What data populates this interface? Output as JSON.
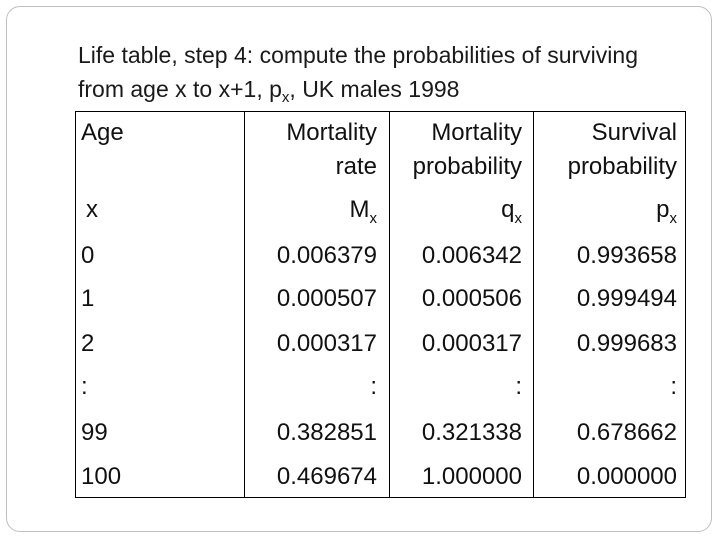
{
  "title": {
    "text": "Life table, step 4: compute the probabilities of surviving from age x to x+1, p",
    "sub": "x",
    "suffix": ", UK males 1998"
  },
  "table": {
    "headers": {
      "age": "Age",
      "mortality_rate": [
        "Mortality",
        "rate"
      ],
      "mortality_probability": [
        "Mortality",
        "probability"
      ],
      "survival_probability": [
        "Survival",
        "probability"
      ]
    },
    "symbols": {
      "age": "x",
      "mortality_rate": {
        "base": "M",
        "sub": "x"
      },
      "mortality_probability": {
        "base": "q",
        "sub": "x"
      },
      "survival_probability": {
        "base": "p",
        "sub": "x"
      }
    },
    "rows": [
      {
        "age": "0",
        "mx": "0.006379",
        "qx": "0.006342",
        "px": "0.993658"
      },
      {
        "age": "1",
        "mx": "0.000507",
        "qx": "0.000506",
        "px": "0.999494"
      },
      {
        "age": "2",
        "mx": "0.000317",
        "qx": "0.000317",
        "px": "0.999683"
      },
      {
        "age": ":",
        "mx": ":",
        "qx": ":",
        "px": ":"
      },
      {
        "age": "99",
        "mx": "0.382851",
        "qx": "0.321338",
        "px": "0.678662"
      },
      {
        "age": "100",
        "mx": "0.469674",
        "qx": "1.000000",
        "px": "0.000000"
      }
    ]
  }
}
